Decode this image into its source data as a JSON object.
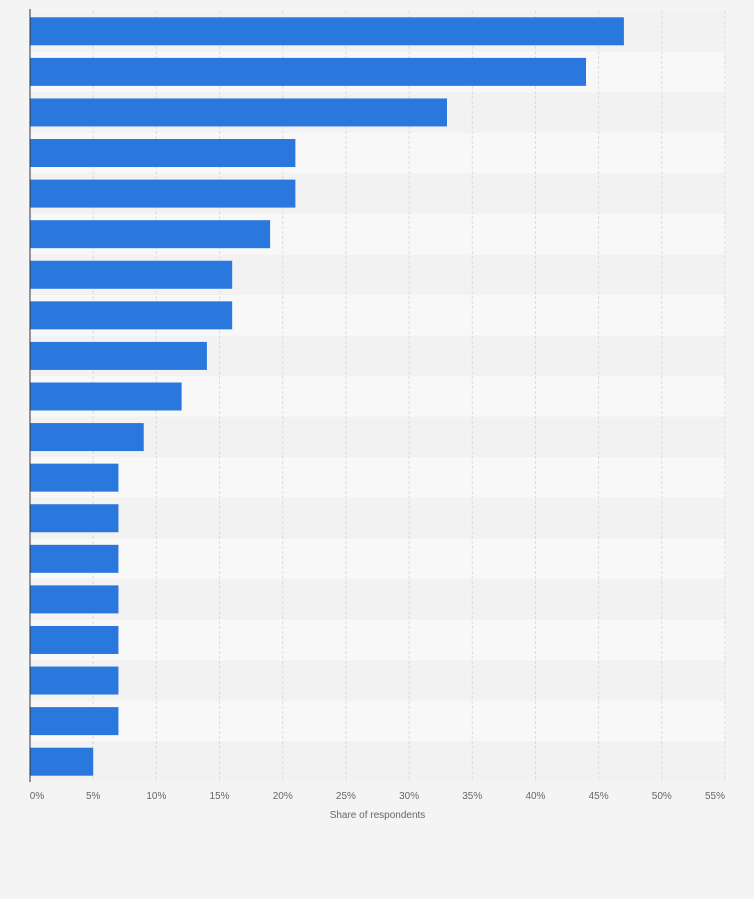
{
  "chart_data": {
    "type": "bar",
    "orientation": "horizontal",
    "title": "",
    "xlabel": "Share of respondents",
    "ylabel": "",
    "unit": "%",
    "xlim": [
      0,
      55
    ],
    "xticks": [
      0,
      5,
      10,
      15,
      20,
      25,
      30,
      35,
      40,
      45,
      50,
      55
    ],
    "values": [
      47,
      44,
      33,
      21,
      21,
      19,
      16,
      16,
      14,
      12,
      9,
      7,
      7,
      7,
      7,
      7,
      7,
      7,
      5
    ],
    "grid": true,
    "legend": "none",
    "colors": {
      "bar": "#2a77dd",
      "band_dark": "#f2f2f2",
      "band_light": "#f8f8f8",
      "grid": "#dcdcdc",
      "axis": "#333333",
      "text": "#666666"
    }
  }
}
